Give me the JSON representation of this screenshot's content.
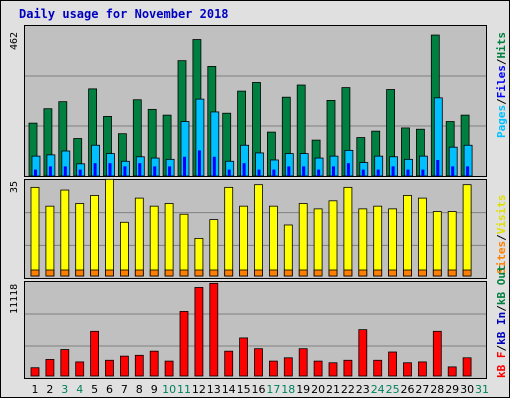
{
  "title": "Daily usage for November 2018",
  "colors": {
    "hits": "#008040",
    "files": "#00c0ff",
    "pages": "#0000ff",
    "visits": "#ffff00",
    "sites": "#ff8000",
    "kb_f": "#ff0000",
    "kb_in": "#0000c0",
    "kb_out": "#008040"
  },
  "legend": {
    "top": {
      "pages": "Pages",
      "files": "Files",
      "hits": "Hits",
      "sep": "/"
    },
    "mid": {
      "sites": "Sites",
      "visits": "Visits",
      "sep": "/"
    },
    "bot": {
      "kb_f": "kB F",
      "kb_in": "kB In",
      "kb_out": "kB Out",
      "sep": "/"
    }
  },
  "y_labels": {
    "top": "462",
    "mid": "35",
    "bot": "11118"
  },
  "chart_data": [
    {
      "type": "bar",
      "panel": "top",
      "categories": [
        "1",
        "2",
        "3",
        "4",
        "5",
        "6",
        "7",
        "8",
        "9",
        "10",
        "11",
        "12",
        "13",
        "14",
        "15",
        "16",
        "17",
        "18",
        "19",
        "20",
        "21",
        "22",
        "23",
        "24",
        "25",
        "26",
        "27",
        "28",
        "29",
        "30",
        "31"
      ],
      "ylim": [
        0,
        462
      ],
      "series": [
        {
          "name": "Hits",
          "values": [
            165,
            210,
            232,
            117,
            272,
            186,
            132,
            238,
            208,
            190,
            360,
            426,
            342,
            196,
            265,
            292,
            137,
            246,
            284,
            112,
            236,
            276,
            120,
            140,
            270,
            150,
            146,
            440,
            170,
            190,
            0
          ]
        },
        {
          "name": "Files",
          "values": [
            62,
            66,
            78,
            38,
            96,
            70,
            46,
            60,
            56,
            52,
            170,
            240,
            200,
            46,
            96,
            72,
            50,
            70,
            70,
            56,
            62,
            80,
            42,
            62,
            60,
            52,
            62,
            244,
            90,
            96,
            0
          ]
        },
        {
          "name": "Pages",
          "values": [
            20,
            30,
            30,
            20,
            40,
            40,
            30,
            40,
            30,
            30,
            60,
            80,
            60,
            20,
            40,
            20,
            20,
            30,
            30,
            20,
            30,
            40,
            20,
            20,
            30,
            20,
            20,
            50,
            30,
            30,
            0
          ]
        }
      ]
    },
    {
      "type": "bar",
      "panel": "mid",
      "categories": [
        "1",
        "2",
        "3",
        "4",
        "5",
        "6",
        "7",
        "8",
        "9",
        "10",
        "11",
        "12",
        "13",
        "14",
        "15",
        "16",
        "17",
        "18",
        "19",
        "20",
        "21",
        "22",
        "23",
        "24",
        "25",
        "26",
        "27",
        "28",
        "29",
        "30",
        "31"
      ],
      "ylim": [
        0,
        35
      ],
      "series": [
        {
          "name": "Visits",
          "values": [
            33,
            26,
            32,
            27,
            30,
            36,
            20,
            29,
            26,
            27,
            23,
            14,
            21,
            33,
            26,
            34,
            26,
            19,
            27,
            25,
            28,
            33,
            25,
            26,
            25,
            30,
            29,
            24,
            24,
            34,
            0
          ]
        },
        {
          "name": "Sites",
          "values": [
            2,
            2,
            2,
            2,
            2,
            2,
            2,
            2,
            2,
            2,
            2,
            2,
            2,
            2,
            2,
            2,
            2,
            2,
            2,
            2,
            2,
            2,
            2,
            2,
            2,
            2,
            2,
            2,
            2,
            2,
            0
          ]
        }
      ]
    },
    {
      "type": "bar",
      "panel": "bot",
      "categories": [
        "1",
        "2",
        "3",
        "4",
        "5",
        "6",
        "7",
        "8",
        "9",
        "10",
        "11",
        "12",
        "13",
        "14",
        "15",
        "16",
        "17",
        "18",
        "19",
        "20",
        "21",
        "22",
        "23",
        "24",
        "25",
        "26",
        "27",
        "28",
        "29",
        "30",
        "31"
      ],
      "ylim": [
        0,
        11118
      ],
      "series": [
        {
          "name": "kB F",
          "values": [
            1000,
            2000,
            3200,
            1700,
            5400,
            1900,
            2400,
            2500,
            3000,
            1800,
            7800,
            10700,
            11200,
            3000,
            4600,
            3300,
            1800,
            2200,
            3300,
            1800,
            1600,
            1900,
            5600,
            1900,
            2900,
            1600,
            1700,
            5400,
            1100,
            2200,
            0
          ]
        },
        {
          "name": "kB In",
          "values": [
            0,
            0,
            0,
            0,
            0,
            0,
            0,
            0,
            0,
            0,
            0,
            0,
            0,
            0,
            0,
            0,
            0,
            0,
            0,
            0,
            0,
            0,
            0,
            0,
            0,
            0,
            0,
            0,
            0,
            0,
            0
          ]
        },
        {
          "name": "kB Out",
          "values": [
            0,
            0,
            0,
            0,
            0,
            0,
            0,
            0,
            0,
            0,
            0,
            0,
            0,
            0,
            0,
            0,
            0,
            0,
            0,
            0,
            0,
            0,
            0,
            0,
            0,
            0,
            0,
            0,
            0,
            0,
            0
          ]
        }
      ]
    }
  ],
  "x_labels": [
    {
      "label": "1",
      "weekend": false
    },
    {
      "label": "2",
      "weekend": false
    },
    {
      "label": "3",
      "weekend": true
    },
    {
      "label": "4",
      "weekend": true
    },
    {
      "label": "5",
      "weekend": false
    },
    {
      "label": "6",
      "weekend": false
    },
    {
      "label": "7",
      "weekend": false
    },
    {
      "label": "8",
      "weekend": false
    },
    {
      "label": "9",
      "weekend": false
    },
    {
      "label": "10",
      "weekend": true
    },
    {
      "label": "11",
      "weekend": true
    },
    {
      "label": "12",
      "weekend": false
    },
    {
      "label": "13",
      "weekend": false
    },
    {
      "label": "14",
      "weekend": false
    },
    {
      "label": "15",
      "weekend": false
    },
    {
      "label": "16",
      "weekend": false
    },
    {
      "label": "17",
      "weekend": true
    },
    {
      "label": "18",
      "weekend": true
    },
    {
      "label": "19",
      "weekend": false
    },
    {
      "label": "20",
      "weekend": false
    },
    {
      "label": "21",
      "weekend": false
    },
    {
      "label": "22",
      "weekend": false
    },
    {
      "label": "23",
      "weekend": false
    },
    {
      "label": "24",
      "weekend": true
    },
    {
      "label": "25",
      "weekend": true
    },
    {
      "label": "26",
      "weekend": false
    },
    {
      "label": "27",
      "weekend": false
    },
    {
      "label": "28",
      "weekend": false
    },
    {
      "label": "29",
      "weekend": false
    },
    {
      "label": "30",
      "weekend": false
    },
    {
      "label": "31",
      "weekend": true
    }
  ],
  "weekend_color": "#00805c"
}
